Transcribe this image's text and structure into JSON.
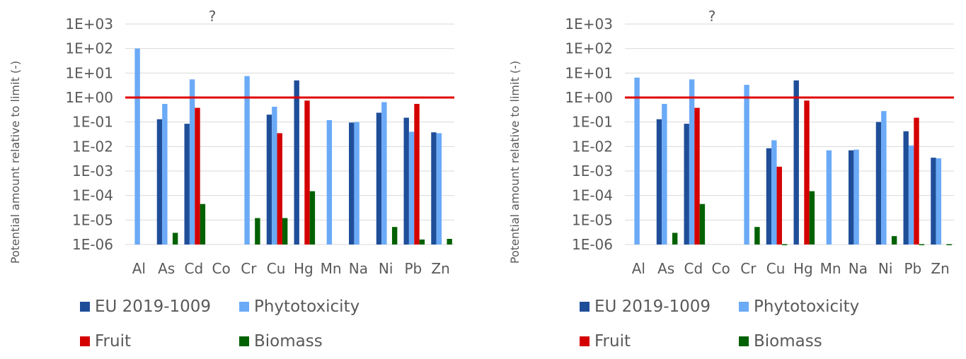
{
  "colors": {
    "eu": "#1f4e99",
    "phyto": "#6aaaf7",
    "fruit": "#d40000",
    "biomass": "#006100",
    "limit_line": "#e00000",
    "grid": "#d9d9d9"
  },
  "legend": {
    "eu": "EU 2019-1009",
    "phyto": "Phytotoxicity",
    "fruit": "Fruit",
    "biomass": "Biomass"
  },
  "chart_data": [
    {
      "type": "bar",
      "title": "?",
      "ylabel": "Potential amount relative to limit (-)",
      "yscale": "log",
      "ylim": [
        1e-06,
        1000
      ],
      "yticks": [
        "1E-06",
        "1E-05",
        "1E-04",
        "1E-03",
        "1E-02",
        "1E-01",
        "1E+00",
        "1E+01",
        "1E+02",
        "1E+03"
      ],
      "grid": true,
      "legend_position": "bottom",
      "limit_line": 1,
      "categories": [
        "Al",
        "As",
        "Cd",
        "Co",
        "Cr",
        "Cu",
        "Hg",
        "Mn",
        "Na",
        "Ni",
        "Pb",
        "Zn"
      ],
      "series": [
        {
          "name": "EU 2019-1009",
          "color_key": "eu",
          "values": [
            null,
            0.13,
            0.085,
            null,
            null,
            0.2,
            5,
            null,
            0.095,
            0.24,
            0.15,
            0.038
          ]
        },
        {
          "name": "Phytotoxicity",
          "color_key": "phyto",
          "values": [
            100,
            0.55,
            5.5,
            null,
            7.5,
            0.42,
            null,
            0.12,
            0.1,
            0.65,
            0.04,
            0.035
          ]
        },
        {
          "name": "Fruit",
          "color_key": "fruit",
          "values": [
            null,
            null,
            0.38,
            null,
            null,
            0.035,
            0.75,
            null,
            null,
            null,
            0.55,
            null
          ]
        },
        {
          "name": "Biomass",
          "color_key": "biomass",
          "values": [
            null,
            3e-06,
            4.5e-05,
            null,
            1.2e-05,
            1.2e-05,
            0.00015,
            null,
            null,
            5.2e-06,
            1.6e-06,
            1.7e-06
          ]
        }
      ]
    },
    {
      "type": "bar",
      "title": "?",
      "ylabel": "Potential amount relative to limit (-)",
      "yscale": "log",
      "ylim": [
        1e-06,
        1000
      ],
      "yticks": [
        "1E-06",
        "1E-05",
        "1E-04",
        "1E-03",
        "1E-02",
        "1E-01",
        "1E+00",
        "1E+01",
        "1E+02",
        "1E+03"
      ],
      "grid": true,
      "legend_position": "bottom",
      "limit_line": 1,
      "categories": [
        "Al",
        "As",
        "Cd",
        "Co",
        "Cr",
        "Cu",
        "Hg",
        "Mn",
        "Na",
        "Ni",
        "Pb",
        "Zn"
      ],
      "series": [
        {
          "name": "EU 2019-1009",
          "color_key": "eu",
          "values": [
            null,
            0.13,
            0.085,
            null,
            null,
            0.0085,
            5,
            null,
            0.007,
            0.1,
            0.042,
            0.0035
          ]
        },
        {
          "name": "Phytotoxicity",
          "color_key": "phyto",
          "values": [
            6.5,
            0.55,
            5.5,
            null,
            3.3,
            0.018,
            null,
            0.007,
            0.0075,
            0.28,
            0.011,
            0.0033
          ]
        },
        {
          "name": "Fruit",
          "color_key": "fruit",
          "values": [
            null,
            null,
            0.38,
            null,
            null,
            0.0015,
            0.75,
            null,
            null,
            null,
            0.15,
            null
          ]
        },
        {
          "name": "Biomass",
          "color_key": "biomass",
          "values": [
            null,
            3e-06,
            4.5e-05,
            null,
            5.2e-06,
            9e-07,
            0.00015,
            null,
            null,
            2.2e-06,
            9e-07,
            9e-07
          ]
        }
      ]
    }
  ]
}
